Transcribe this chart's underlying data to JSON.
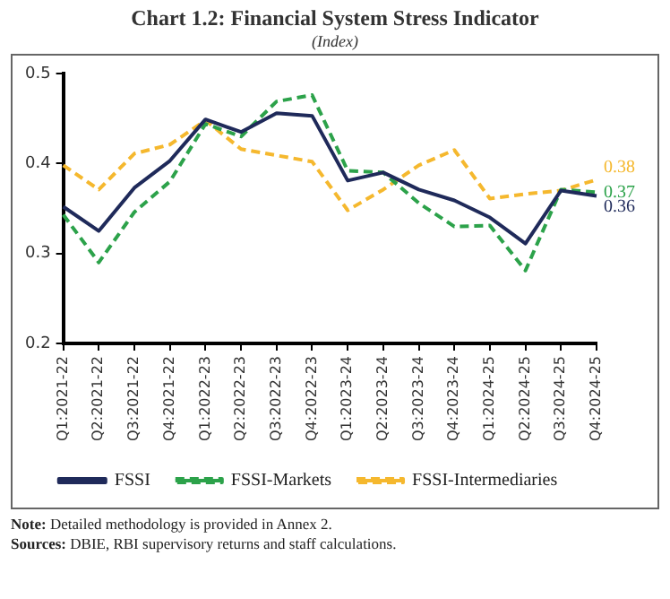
{
  "chart_data": {
    "type": "line",
    "title": "Chart 1.2: Financial System Stress Indicator",
    "subtitle": "(Index)",
    "categories": [
      "Q1:2021-22",
      "Q2:2021-22",
      "Q3:2021-22",
      "Q4:2021-22",
      "Q1:2022-23",
      "Q2:2022-23",
      "Q3:2022-23",
      "Q4:2022-23",
      "Q1:2023-24",
      "Q2:2023-24",
      "Q3:2023-24",
      "Q4:2023-24",
      "Q1:2024-25",
      "Q2:2024-25",
      "Q3:2024-25",
      "Q4:2024-25"
    ],
    "series": [
      {
        "name": "FSSI",
        "color": "#1f2a5a",
        "line_style": "solid",
        "values": [
          0.352,
          0.325,
          0.373,
          0.403,
          0.449,
          0.435,
          0.456,
          0.453,
          0.381,
          0.39,
          0.371,
          0.359,
          0.34,
          0.311,
          0.37,
          0.364
        ],
        "value_labels": [
          null,
          null,
          null,
          null,
          null,
          null,
          null,
          null,
          null,
          null,
          null,
          null,
          null,
          null,
          null,
          "0.36"
        ]
      },
      {
        "name": "FSSI-Markets",
        "color": "#2ca24a",
        "line_style": "dashed",
        "values": [
          0.343,
          0.29,
          0.346,
          0.38,
          0.444,
          0.43,
          0.469,
          0.476,
          0.392,
          0.39,
          0.356,
          0.33,
          0.331,
          0.281,
          0.371,
          0.368
        ],
        "value_labels": [
          null,
          null,
          null,
          null,
          null,
          null,
          null,
          null,
          null,
          null,
          null,
          null,
          null,
          null,
          null,
          "0.37"
        ]
      },
      {
        "name": "FSSI-Intermediaries",
        "color": "#f5b82e",
        "line_style": "dashed",
        "values": [
          0.398,
          0.371,
          0.411,
          0.421,
          0.448,
          0.416,
          0.409,
          0.402,
          0.348,
          0.371,
          0.398,
          0.415,
          0.361,
          0.366,
          0.37,
          0.382
        ],
        "value_labels": [
          null,
          null,
          null,
          null,
          null,
          null,
          null,
          null,
          null,
          null,
          null,
          null,
          null,
          null,
          null,
          "0.38"
        ]
      }
    ],
    "ylim": [
      0.2,
      0.5
    ],
    "yticks": [
      0.2,
      0.3,
      0.4,
      0.5
    ],
    "grid": false,
    "legend": "bottom",
    "marker": "none",
    "annotations": [
      "Note: Detailed methodology is provided in Annex 2.",
      "Sources: DBIE, RBI supervisory returns and staff calculations."
    ]
  }
}
